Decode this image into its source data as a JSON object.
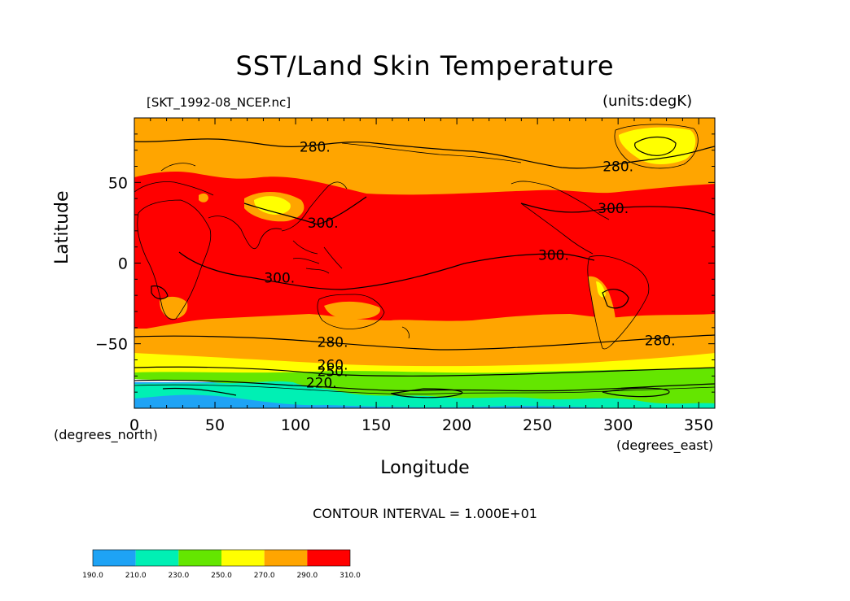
{
  "chart_data": {
    "type": "heatmap",
    "title": "SST/Land Skin Temperature",
    "subtitle_left": "[SKT_1992-08_NCEP.nc]",
    "subtitle_right": "(units:degK)",
    "xlabel": "Longitude",
    "ylabel": "Latitude",
    "x_unit": "(degrees_east)",
    "y_unit": "(degrees_north)",
    "xlim": [
      0,
      360
    ],
    "ylim": [
      -90,
      90
    ],
    "x_ticks": [
      0,
      50,
      100,
      150,
      200,
      250,
      300,
      350
    ],
    "y_ticks": [
      -50,
      0,
      50
    ],
    "x_tick_labels": [
      "0",
      "50",
      "100",
      "150",
      "200",
      "250",
      "300",
      "350"
    ],
    "y_tick_labels": [
      "−50",
      "0",
      "50"
    ],
    "footer": "CONTOUR INTERVAL = 1.000E+01",
    "contour_interval": 10,
    "colorbar": {
      "levels": [
        190,
        210,
        230,
        250,
        270,
        290,
        310
      ],
      "labels": [
        "190.0",
        "210.0",
        "230.0",
        "250.0",
        "270.0",
        "290.0",
        "310.0"
      ],
      "colors": [
        "#1ea3f5",
        "#00f0b4",
        "#64e600",
        "#ffff00",
        "#ffa500",
        "#ff0000"
      ]
    },
    "contour_labels": [
      {
        "text": "280.",
        "lon": 112,
        "lat": 72
      },
      {
        "text": "280.",
        "lon": 300,
        "lat": 60
      },
      {
        "text": "300.",
        "lon": 297,
        "lat": 34
      },
      {
        "text": "300.",
        "lon": 117,
        "lat": 25
      },
      {
        "text": "300.",
        "lon": 260,
        "lat": 5
      },
      {
        "text": "300.",
        "lon": 90,
        "lat": -9
      },
      {
        "text": "280.",
        "lon": 123,
        "lat": -49
      },
      {
        "text": "280.",
        "lon": 326,
        "lat": -48
      },
      {
        "text": "260.",
        "lon": 123,
        "lat": -63
      },
      {
        "text": "250.",
        "lon": 123,
        "lat": -67
      },
      {
        "text": "220.",
        "lon": 116,
        "lat": -74
      }
    ]
  }
}
